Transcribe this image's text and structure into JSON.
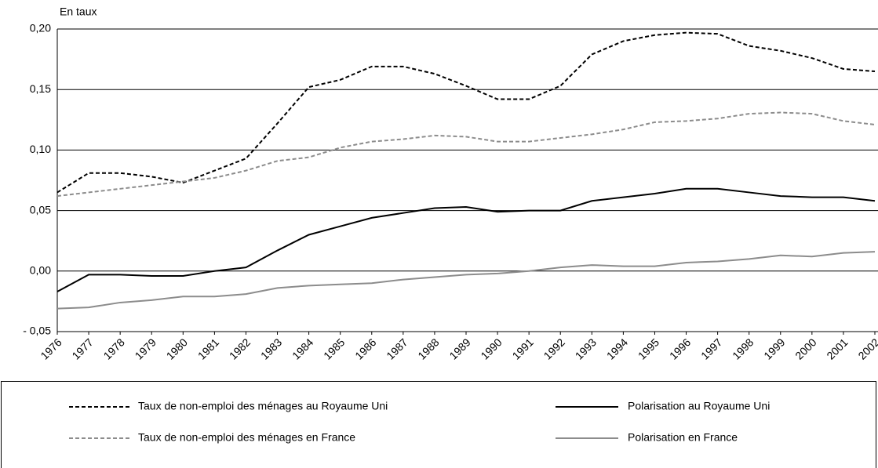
{
  "chart_data": {
    "type": "line",
    "y_label": "En taux",
    "categories": [
      "1976",
      "1977",
      "1978",
      "1979",
      "1980",
      "1981",
      "1982",
      "1983",
      "1984",
      "1985",
      "1986",
      "1987",
      "1988",
      "1989",
      "1990",
      "1991",
      "1992",
      "1993",
      "1994",
      "1995",
      "1996",
      "1997",
      "1998",
      "1999",
      "2000",
      "2001",
      "2002"
    ],
    "series": [
      {
        "name": "Taux de non-emploi des ménages au Royaume Uni",
        "color": "#000000",
        "dashed": true,
        "values": [
          0.065,
          0.081,
          0.081,
          0.078,
          0.073,
          0.083,
          0.093,
          0.122,
          0.152,
          0.158,
          0.169,
          0.169,
          0.163,
          0.153,
          0.142,
          0.142,
          0.153,
          0.179,
          0.19,
          0.195,
          0.197,
          0.196,
          0.186,
          0.182,
          0.176,
          0.167,
          0.165
        ]
      },
      {
        "name": "Taux de non-emploi des ménages en France",
        "color": "#8c8c8c",
        "dashed": true,
        "values": [
          0.062,
          0.065,
          0.068,
          0.071,
          0.074,
          0.077,
          0.083,
          0.091,
          0.094,
          0.102,
          0.107,
          0.109,
          0.112,
          0.111,
          0.107,
          0.107,
          0.11,
          0.113,
          0.117,
          0.123,
          0.124,
          0.126,
          0.13,
          0.131,
          0.13,
          0.124,
          0.121
        ]
      },
      {
        "name": "Polarisation au Royaume Uni",
        "color": "#000000",
        "dashed": false,
        "values": [
          -0.017,
          -0.003,
          -0.003,
          -0.004,
          -0.004,
          0.0,
          0.003,
          0.017,
          0.03,
          0.037,
          0.044,
          0.048,
          0.052,
          0.053,
          0.049,
          0.05,
          0.05,
          0.058,
          0.061,
          0.064,
          0.068,
          0.068,
          0.065,
          0.062,
          0.061,
          0.061,
          0.058
        ]
      },
      {
        "name": "Polarisation en France",
        "color": "#8c8c8c",
        "dashed": false,
        "values": [
          -0.031,
          -0.03,
          -0.026,
          -0.024,
          -0.021,
          -0.021,
          -0.019,
          -0.014,
          -0.012,
          -0.011,
          -0.01,
          -0.007,
          -0.005,
          -0.003,
          -0.002,
          0.0,
          0.003,
          0.005,
          0.004,
          0.004,
          0.007,
          0.008,
          0.01,
          0.013,
          0.012,
          0.015,
          0.016
        ]
      }
    ],
    "ylim": [
      -0.05,
      0.2
    ],
    "yticks": [
      {
        "value": -0.05,
        "label": "- 0,05"
      },
      {
        "value": 0,
        "label": "0,00"
      },
      {
        "value": 0.05,
        "label": "0,05"
      },
      {
        "value": 0.1,
        "label": "0,10"
      },
      {
        "value": 0.15,
        "label": "0,15"
      },
      {
        "value": 0.2,
        "label": "0,20"
      }
    ],
    "grid": true,
    "legend": "bottom"
  }
}
